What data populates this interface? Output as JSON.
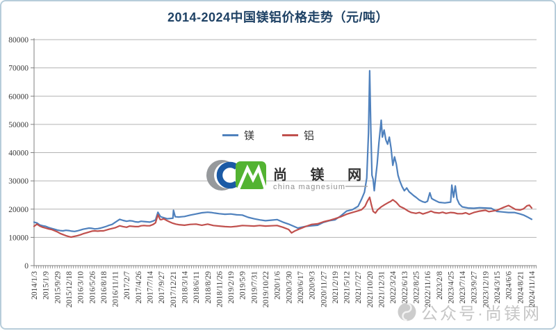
{
  "title": {
    "text": "2014-2024中国镁铝价格走势（元/吨）",
    "color": "#1f4265"
  },
  "legend": {
    "items": [
      {
        "label": "镁",
        "color": "#4f81bd"
      },
      {
        "label": "铝",
        "color": "#c0504d"
      }
    ]
  },
  "watermark_center": {
    "brand_cn": "尚 镁 网",
    "brand_en": "china magnesium",
    "cm_blue": "#1b5aa5",
    "cm_green": "#53b332",
    "crescent_gray": "#96999c"
  },
  "watermark_corner": {
    "text": "公众号·尚镁网"
  },
  "colors": {
    "grid": "#b3b3b3",
    "axis": "#7f7f7f",
    "tick_label": "#3a3a3a",
    "frame_border": "#b7cdda"
  },
  "chart_data": {
    "type": "line",
    "title": "2014-2024中国镁铝价格走势（元/吨）",
    "xlabel": "",
    "ylabel": "",
    "ylim": [
      0,
      80000
    ],
    "yticks": [
      0,
      10000,
      20000,
      30000,
      40000,
      50000,
      60000,
      70000,
      80000
    ],
    "grid": "horizontal",
    "legend_position": "center-upper",
    "x_tick_labels": [
      "2014/1/3",
      "2015/1/9",
      "2015/9/29",
      "2015/12/18",
      "2016/3/10",
      "2016/5/26",
      "2016/8/18",
      "2016/11/11",
      "2017/2/7",
      "2017/4/26",
      "2017/7/14",
      "2017/9/27",
      "2017/12/21",
      "2018/3/14",
      "2018/6/11",
      "2018/8/29",
      "2018/11/26",
      "2019/2/19",
      "2019/5/9",
      "2019/7/31",
      "2019/10/22",
      "2020/1/6",
      "2020/3/30",
      "2020/6/17",
      "2020/9/3",
      "2020/11/27",
      "2021/2/19",
      "2021/5/12",
      "2021/7/27",
      "2021/10/20",
      "2021/12/31",
      "2022/3/24",
      "2022/6/13",
      "2022/8/25",
      "2022/11/16",
      "2023/2/8",
      "2023/4/25",
      "2023/7/14",
      "2023/9/27",
      "2023/12/19",
      "2024/3/15",
      "2024/6/6",
      "2024/8/21",
      "2024/11/14"
    ],
    "x_unit": "tick_index",
    "series": [
      {
        "name": "镁",
        "color": "#4f81bd",
        "points": [
          [
            0,
            15400
          ],
          [
            0.25,
            15100
          ],
          [
            0.5,
            14400
          ],
          [
            0.75,
            14100
          ],
          [
            1,
            13900
          ],
          [
            1.25,
            13500
          ],
          [
            1.5,
            13200
          ],
          [
            1.75,
            12900
          ],
          [
            2,
            12600
          ],
          [
            2.25,
            12400
          ],
          [
            2.5,
            12300
          ],
          [
            2.75,
            12500
          ],
          [
            3,
            12400
          ],
          [
            3.25,
            12200
          ],
          [
            3.5,
            12100
          ],
          [
            3.75,
            12300
          ],
          [
            4,
            12600
          ],
          [
            4.25,
            12900
          ],
          [
            4.5,
            13100
          ],
          [
            4.75,
            13300
          ],
          [
            5,
            13200
          ],
          [
            5.25,
            13000
          ],
          [
            5.5,
            13100
          ],
          [
            5.75,
            13300
          ],
          [
            6,
            13600
          ],
          [
            6.25,
            13900
          ],
          [
            6.5,
            14300
          ],
          [
            6.75,
            14600
          ],
          [
            7,
            15300
          ],
          [
            7.4,
            16400
          ],
          [
            7.7,
            16000
          ],
          [
            8,
            15700
          ],
          [
            8.25,
            15900
          ],
          [
            8.5,
            15800
          ],
          [
            8.75,
            15500
          ],
          [
            9,
            15400
          ],
          [
            9.25,
            15700
          ],
          [
            9.5,
            15600
          ],
          [
            9.75,
            15500
          ],
          [
            10,
            15400
          ],
          [
            10.3,
            15800
          ],
          [
            10.5,
            16200
          ],
          [
            10.7,
            18900
          ],
          [
            10.9,
            17500
          ],
          [
            11,
            17200
          ],
          [
            11.25,
            16900
          ],
          [
            11.5,
            16600
          ],
          [
            11.75,
            16700
          ],
          [
            12,
            16800
          ],
          [
            12.05,
            19600
          ],
          [
            12.2,
            17300
          ],
          [
            12.5,
            17200
          ],
          [
            12.75,
            17300
          ],
          [
            13,
            17400
          ],
          [
            13.5,
            17900
          ],
          [
            14,
            18300
          ],
          [
            14.5,
            18700
          ],
          [
            15,
            18900
          ],
          [
            15.3,
            18800
          ],
          [
            15.6,
            18600
          ],
          [
            16,
            18400
          ],
          [
            16.5,
            18200
          ],
          [
            17,
            18300
          ],
          [
            17.5,
            18000
          ],
          [
            18,
            17900
          ],
          [
            18.5,
            17100
          ],
          [
            19,
            16600
          ],
          [
            19.5,
            16200
          ],
          [
            20,
            15900
          ],
          [
            20.5,
            16100
          ],
          [
            21,
            16300
          ],
          [
            21.5,
            15400
          ],
          [
            22,
            14700
          ],
          [
            22.5,
            13800
          ],
          [
            22.8,
            13300
          ],
          [
            23,
            13500
          ],
          [
            23.5,
            13900
          ],
          [
            24,
            14100
          ],
          [
            24.5,
            14300
          ],
          [
            25,
            15300
          ],
          [
            25.5,
            15900
          ],
          [
            26,
            16200
          ],
          [
            26.5,
            17600
          ],
          [
            27,
            19300
          ],
          [
            27.5,
            19800
          ],
          [
            28,
            21000
          ],
          [
            28.3,
            23500
          ],
          [
            28.55,
            26000
          ],
          [
            28.75,
            31000
          ],
          [
            28.9,
            47000
          ],
          [
            29,
            69000
          ],
          [
            29.1,
            49000
          ],
          [
            29.2,
            32000
          ],
          [
            29.3,
            30500
          ],
          [
            29.4,
            26500
          ],
          [
            29.5,
            30500
          ],
          [
            29.65,
            36000
          ],
          [
            29.8,
            43500
          ],
          [
            30,
            51500
          ],
          [
            30.1,
            45500
          ],
          [
            30.25,
            48000
          ],
          [
            30.4,
            44500
          ],
          [
            30.55,
            43000
          ],
          [
            30.7,
            45500
          ],
          [
            30.85,
            41500
          ],
          [
            31,
            35500
          ],
          [
            31.15,
            38500
          ],
          [
            31.3,
            36000
          ],
          [
            31.45,
            32000
          ],
          [
            31.6,
            30000
          ],
          [
            31.8,
            28000
          ],
          [
            32,
            26500
          ],
          [
            32.2,
            27500
          ],
          [
            32.4,
            26200
          ],
          [
            32.6,
            25500
          ],
          [
            32.8,
            24800
          ],
          [
            33,
            24200
          ],
          [
            33.3,
            23200
          ],
          [
            33.6,
            22600
          ],
          [
            33.8,
            22400
          ],
          [
            34,
            22800
          ],
          [
            34.2,
            25800
          ],
          [
            34.35,
            23800
          ],
          [
            34.5,
            23400
          ],
          [
            34.75,
            22900
          ],
          [
            35,
            22400
          ],
          [
            35.5,
            22200
          ],
          [
            36,
            22500
          ],
          [
            36.1,
            28500
          ],
          [
            36.25,
            24200
          ],
          [
            36.4,
            28200
          ],
          [
            36.55,
            23600
          ],
          [
            36.75,
            21800
          ],
          [
            37,
            20800
          ],
          [
            37.5,
            20400
          ],
          [
            38,
            20300
          ],
          [
            38.5,
            20500
          ],
          [
            39,
            20400
          ],
          [
            39.5,
            20300
          ],
          [
            40,
            19200
          ],
          [
            40.5,
            19000
          ],
          [
            41,
            18800
          ],
          [
            41.5,
            18800
          ],
          [
            42,
            18300
          ],
          [
            42.3,
            17900
          ],
          [
            42.6,
            17300
          ],
          [
            43,
            16400
          ]
        ]
      },
      {
        "name": "铝",
        "color": "#c0504d",
        "points": [
          [
            0,
            13900
          ],
          [
            0.25,
            14700
          ],
          [
            0.5,
            14000
          ],
          [
            0.75,
            13600
          ],
          [
            1,
            13300
          ],
          [
            1.25,
            13000
          ],
          [
            1.5,
            12800
          ],
          [
            1.75,
            12400
          ],
          [
            2,
            12000
          ],
          [
            2.25,
            11400
          ],
          [
            2.5,
            11000
          ],
          [
            2.75,
            10600
          ],
          [
            3,
            10300
          ],
          [
            3.2,
            10100
          ],
          [
            3.5,
            10400
          ],
          [
            3.75,
            10600
          ],
          [
            4,
            10900
          ],
          [
            4.25,
            11300
          ],
          [
            4.5,
            11600
          ],
          [
            4.75,
            11900
          ],
          [
            5,
            12200
          ],
          [
            5.25,
            12300
          ],
          [
            5.5,
            12200
          ],
          [
            5.75,
            12300
          ],
          [
            6,
            12300
          ],
          [
            6.5,
            12900
          ],
          [
            7,
            13400
          ],
          [
            7.4,
            14100
          ],
          [
            7.7,
            13800
          ],
          [
            8,
            13600
          ],
          [
            8.25,
            14000
          ],
          [
            8.5,
            13900
          ],
          [
            8.75,
            13800
          ],
          [
            9,
            13800
          ],
          [
            9.25,
            14100
          ],
          [
            9.5,
            14200
          ],
          [
            9.75,
            14100
          ],
          [
            10,
            14100
          ],
          [
            10.3,
            14600
          ],
          [
            10.5,
            15200
          ],
          [
            10.7,
            18000
          ],
          [
            10.9,
            16300
          ],
          [
            11,
            16300
          ],
          [
            11.2,
            16600
          ],
          [
            11.5,
            15900
          ],
          [
            11.75,
            15400
          ],
          [
            12,
            15000
          ],
          [
            12.25,
            14700
          ],
          [
            12.5,
            14500
          ],
          [
            13,
            14300
          ],
          [
            13.5,
            14600
          ],
          [
            14,
            14700
          ],
          [
            14.5,
            14300
          ],
          [
            15,
            14700
          ],
          [
            15.5,
            14200
          ],
          [
            16,
            14000
          ],
          [
            16.5,
            13800
          ],
          [
            17,
            13700
          ],
          [
            17.5,
            13900
          ],
          [
            18,
            14200
          ],
          [
            18.5,
            14100
          ],
          [
            19,
            14000
          ],
          [
            19.5,
            14200
          ],
          [
            20,
            14000
          ],
          [
            20.5,
            14100
          ],
          [
            21,
            14200
          ],
          [
            21.5,
            13600
          ],
          [
            22,
            12800
          ],
          [
            22.25,
            11600
          ],
          [
            22.5,
            12200
          ],
          [
            23,
            13100
          ],
          [
            23.5,
            13900
          ],
          [
            24,
            14600
          ],
          [
            24.5,
            14800
          ],
          [
            25,
            15500
          ],
          [
            25.5,
            16000
          ],
          [
            26,
            16600
          ],
          [
            26.5,
            17300
          ],
          [
            27,
            18200
          ],
          [
            27.5,
            18800
          ],
          [
            28,
            19400
          ],
          [
            28.3,
            19800
          ],
          [
            28.6,
            21000
          ],
          [
            28.8,
            22800
          ],
          [
            29,
            24200
          ],
          [
            29.15,
            21500
          ],
          [
            29.3,
            19200
          ],
          [
            29.5,
            18600
          ],
          [
            29.7,
            19800
          ],
          [
            30,
            20800
          ],
          [
            30.3,
            21600
          ],
          [
            30.6,
            22300
          ],
          [
            30.8,
            22700
          ],
          [
            31,
            23300
          ],
          [
            31.3,
            22400
          ],
          [
            31.6,
            21000
          ],
          [
            32,
            20200
          ],
          [
            32.3,
            19400
          ],
          [
            32.6,
            18800
          ],
          [
            33,
            18500
          ],
          [
            33.3,
            18800
          ],
          [
            33.6,
            18300
          ],
          [
            34,
            18800
          ],
          [
            34.3,
            19300
          ],
          [
            34.6,
            18800
          ],
          [
            35,
            18600
          ],
          [
            35.3,
            18900
          ],
          [
            35.6,
            18500
          ],
          [
            36,
            18800
          ],
          [
            36.3,
            18700
          ],
          [
            36.6,
            18400
          ],
          [
            37,
            18400
          ],
          [
            37.3,
            18700
          ],
          [
            37.6,
            18200
          ],
          [
            38,
            18800
          ],
          [
            38.5,
            19300
          ],
          [
            39,
            19600
          ],
          [
            39.3,
            19100
          ],
          [
            39.6,
            19300
          ],
          [
            40,
            19600
          ],
          [
            40.5,
            20500
          ],
          [
            41,
            21300
          ],
          [
            41.3,
            20600
          ],
          [
            41.6,
            19900
          ],
          [
            42,
            19700
          ],
          [
            42.3,
            20100
          ],
          [
            42.6,
            21200
          ],
          [
            42.8,
            21400
          ],
          [
            43,
            20400
          ]
        ]
      }
    ]
  }
}
